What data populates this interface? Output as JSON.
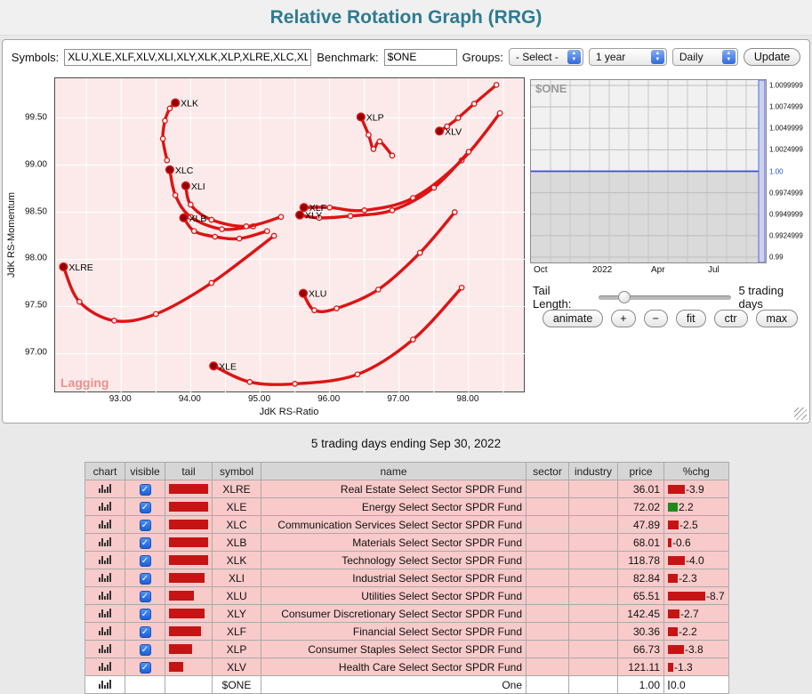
{
  "colors": {
    "title": "#2e7b90",
    "tail_red": "#dd1414",
    "endpoint_red": "#8e0000",
    "green": "#1d8a1d",
    "plot_pink": "#fceaea",
    "row_pink": "#f8caca",
    "benchmark_blue": "#3a4fd0",
    "lagging_pink": "#f08f8f"
  },
  "header": {
    "title": "Relative Rotation Graph (RRG)"
  },
  "toolbar": {
    "symbols_label": "Symbols:",
    "symbols_value": "XLU,XLE,XLF,XLV,XLI,XLY,XLK,XLP,XLRE,XLC,XLB",
    "benchmark_label": "Benchmark:",
    "benchmark_value": "$ONE",
    "groups_label": "Groups:",
    "groups_selected": "- Select -",
    "period_selected": "1 year",
    "frequency_selected": "Daily",
    "update_label": "Update"
  },
  "rrg": {
    "xlabel": "JdK RS-Ratio",
    "ylabel": "JdK RS-Momentum",
    "quadrant_label": "Lagging"
  },
  "benchmark_chart": {
    "title": "$ONE",
    "y_ticks": [
      "1.0099999",
      "1.0074999",
      "1.0049999",
      "1.0024999",
      "1.00",
      "0.9974999",
      "0.9949999",
      "0.9924999",
      "0.99"
    ],
    "blue_tick_index": 4,
    "x_ticks": [
      "Oct",
      "2022",
      "Apr",
      "Jul"
    ],
    "x_tick_pos": [
      4,
      70,
      136,
      200
    ]
  },
  "controls": {
    "tail_length_label": "Tail Length:",
    "tail_length_value": "5 trading days",
    "buttons": [
      {
        "id": "animate",
        "label": "animate",
        "small": false
      },
      {
        "id": "zoom-in",
        "label": "+",
        "small": true
      },
      {
        "id": "zoom-out",
        "label": "−",
        "small": true
      },
      {
        "id": "fit",
        "label": "fit",
        "small": false
      },
      {
        "id": "ctr",
        "label": "ctr",
        "small": false
      },
      {
        "id": "max",
        "label": "max",
        "small": false
      }
    ]
  },
  "status_line": "5 trading days ending Sep 30, 2022",
  "table": {
    "headers": [
      "chart",
      "visible",
      "tail",
      "symbol",
      "name",
      "sector",
      "industry",
      "price",
      "%chg"
    ],
    "rows": [
      {
        "symbol": "XLRE",
        "name": "Real Estate Select Sector SPDR Fund",
        "sector": "",
        "industry": "",
        "price": "36.01",
        "chg": -3.9,
        "chg_text": "-3.9",
        "checked": true,
        "tail_w": 44,
        "bg": "pink"
      },
      {
        "symbol": "XLE",
        "name": "Energy Select Sector SPDR Fund",
        "sector": "",
        "industry": "",
        "price": "72.02",
        "chg": 2.2,
        "chg_text": "2.2",
        "checked": true,
        "tail_w": 44,
        "bg": "pink"
      },
      {
        "symbol": "XLC",
        "name": "Communication Services Select Sector SPDR Fund",
        "sector": "",
        "industry": "",
        "price": "47.89",
        "chg": -2.5,
        "chg_text": "-2.5",
        "checked": true,
        "tail_w": 44,
        "bg": "pink"
      },
      {
        "symbol": "XLB",
        "name": "Materials Select Sector SPDR Fund",
        "sector": "",
        "industry": "",
        "price": "68.01",
        "chg": -0.6,
        "chg_text": "-0.6",
        "checked": true,
        "tail_w": 44,
        "bg": "pink"
      },
      {
        "symbol": "XLK",
        "name": "Technology Select Sector SPDR Fund",
        "sector": "",
        "industry": "",
        "price": "118.78",
        "chg": -4.0,
        "chg_text": "-4.0",
        "checked": true,
        "tail_w": 44,
        "bg": "pink"
      },
      {
        "symbol": "XLI",
        "name": "Industrial Select Sector SPDR Fund",
        "sector": "",
        "industry": "",
        "price": "82.84",
        "chg": -2.3,
        "chg_text": "-2.3",
        "checked": true,
        "tail_w": 40,
        "bg": "pink"
      },
      {
        "symbol": "XLU",
        "name": "Utilities Select Sector SPDR Fund",
        "sector": "",
        "industry": "",
        "price": "65.51",
        "chg": -8.7,
        "chg_text": "-8.7",
        "checked": true,
        "tail_w": 28,
        "bg": "pink"
      },
      {
        "symbol": "XLY",
        "name": "Consumer Discretionary Select Sector SPDR Fund",
        "sector": "",
        "industry": "",
        "price": "142.45",
        "chg": -2.7,
        "chg_text": "-2.7",
        "checked": true,
        "tail_w": 40,
        "bg": "pink"
      },
      {
        "symbol": "XLF",
        "name": "Financial Select Sector SPDR Fund",
        "sector": "",
        "industry": "",
        "price": "30.36",
        "chg": -2.2,
        "chg_text": "-2.2",
        "checked": true,
        "tail_w": 36,
        "bg": "pink"
      },
      {
        "symbol": "XLP",
        "name": "Consumer Staples Select Sector SPDR Fund",
        "sector": "",
        "industry": "",
        "price": "66.73",
        "chg": -3.8,
        "chg_text": "-3.8",
        "checked": true,
        "tail_w": 26,
        "bg": "pink"
      },
      {
        "symbol": "XLV",
        "name": "Health Care Select Sector SPDR Fund",
        "sector": "",
        "industry": "",
        "price": "121.11",
        "chg": -1.3,
        "chg_text": "-1.3",
        "checked": true,
        "tail_w": 16,
        "bg": "pink"
      },
      {
        "symbol": "$ONE",
        "name": "One",
        "sector": "",
        "industry": "",
        "price": "1.00",
        "chg": 0.0,
        "chg_text": "0.0",
        "checked": null,
        "tail_w": 0,
        "bg": "white"
      }
    ]
  },
  "chart_data": [
    {
      "type": "line",
      "title": "RRG tails, 5 trading days ending Sep 30, 2022",
      "xlabel": "JdK RS-Ratio",
      "ylabel": "JdK RS-Momentum",
      "xlim": [
        92.05,
        98.82
      ],
      "ylim": [
        96.58,
        99.92
      ],
      "x_ticks": [
        93,
        94,
        95,
        96,
        97,
        98
      ],
      "y_ticks": [
        99.5,
        99.0,
        98.5,
        98.0,
        97.5,
        97.0
      ],
      "grid_step": 0.5,
      "legend_position": "none",
      "series": [
        {
          "name": "XLK",
          "points": [
            [
              93.66,
              99.05
            ],
            [
              93.6,
              99.28
            ],
            [
              93.63,
              99.47
            ],
            [
              93.7,
              99.6
            ],
            [
              93.78,
              99.66
            ]
          ]
        },
        {
          "name": "XLP",
          "points": [
            [
              96.9,
              99.1
            ],
            [
              96.72,
              99.25
            ],
            [
              96.63,
              99.17
            ],
            [
              96.56,
              99.32
            ],
            [
              96.45,
              99.51
            ]
          ]
        },
        {
          "name": "XLV",
          "points": [
            [
              98.4,
              99.85
            ],
            [
              98.08,
              99.65
            ],
            [
              97.85,
              99.5
            ],
            [
              97.69,
              99.41
            ],
            [
              97.58,
              99.36
            ]
          ]
        },
        {
          "name": "XLC",
          "points": [
            [
              94.9,
              98.35
            ],
            [
              94.45,
              98.32
            ],
            [
              94.0,
              98.45
            ],
            [
              93.78,
              98.68
            ],
            [
              93.7,
              98.95
            ]
          ]
        },
        {
          "name": "XLI",
          "points": [
            [
              95.3,
              98.45
            ],
            [
              94.8,
              98.35
            ],
            [
              94.3,
              98.42
            ],
            [
              94.0,
              98.58
            ],
            [
              93.93,
              98.78
            ]
          ]
        },
        {
          "name": "XLB",
          "points": [
            [
              95.1,
              98.3
            ],
            [
              94.7,
              98.22
            ],
            [
              94.35,
              98.24
            ],
            [
              94.05,
              98.3
            ],
            [
              93.9,
              98.44
            ]
          ]
        },
        {
          "name": "XLF",
          "points": [
            [
              98.45,
              99.55
            ],
            [
              97.9,
              99.05
            ],
            [
              97.2,
              98.65
            ],
            [
              96.5,
              98.52
            ],
            [
              96.0,
              98.55
            ],
            [
              95.63,
              98.55
            ]
          ]
        },
        {
          "name": "XLY",
          "points": [
            [
              98.0,
              99.14
            ],
            [
              97.5,
              98.76
            ],
            [
              96.9,
              98.52
            ],
            [
              96.3,
              98.46
            ],
            [
              95.85,
              98.44
            ],
            [
              95.57,
              98.47
            ]
          ]
        },
        {
          "name": "XLRE",
          "points": [
            [
              95.2,
              98.25
            ],
            [
              94.3,
              97.75
            ],
            [
              93.5,
              97.42
            ],
            [
              92.9,
              97.35
            ],
            [
              92.4,
              97.55
            ],
            [
              92.17,
              97.92
            ]
          ]
        },
        {
          "name": "XLU",
          "points": [
            [
              97.8,
              98.5
            ],
            [
              97.3,
              98.07
            ],
            [
              96.7,
              97.68
            ],
            [
              96.1,
              97.48
            ],
            [
              95.78,
              97.46
            ],
            [
              95.62,
              97.64
            ]
          ]
        },
        {
          "name": "XLE",
          "points": [
            [
              97.9,
              97.7
            ],
            [
              97.2,
              97.15
            ],
            [
              96.4,
              96.78
            ],
            [
              95.5,
              96.68
            ],
            [
              94.85,
              96.7
            ],
            [
              94.33,
              96.87
            ]
          ]
        }
      ]
    },
    {
      "type": "line",
      "title": "$ONE",
      "series": [
        {
          "name": "$ONE",
          "values": [
            1.0
          ],
          "note": "constant benchmark at 1.00"
        }
      ],
      "ylim": [
        0.99,
        1.0099999
      ],
      "x": [
        "Oct",
        "2022",
        "Apr",
        "Jul"
      ]
    }
  ]
}
